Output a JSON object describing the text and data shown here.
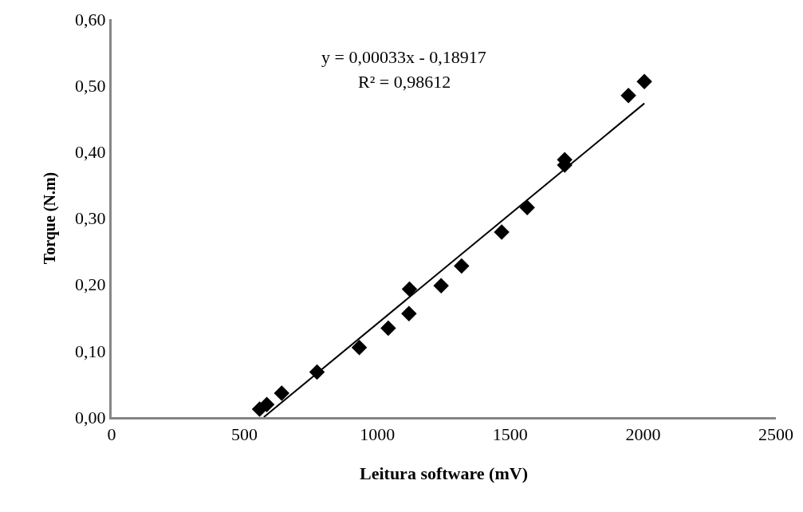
{
  "chart_data": {
    "type": "scatter",
    "xlabel": "Leitura software (mV)",
    "ylabel": "Torque (N.m)",
    "xlim": [
      0,
      2500
    ],
    "xticks": [
      0,
      500,
      1000,
      1500,
      2000,
      2500
    ],
    "ylim": [
      0,
      0.6
    ],
    "yticks": [
      {
        "value": 0,
        "label": "0,00"
      },
      {
        "value": 0.1,
        "label": "0,10"
      },
      {
        "value": 0.2,
        "label": "0,20"
      },
      {
        "value": 0.3,
        "label": "0,30"
      },
      {
        "value": 0.4,
        "label": "0,40"
      },
      {
        "value": 0.5,
        "label": "0,50"
      },
      {
        "value": 0.6,
        "label": "0,60"
      }
    ],
    "grid": false,
    "annotations": [
      "y = 0,00033x - 0,18917",
      "R² = 0,98612"
    ],
    "series": [
      {
        "marker": "diamond",
        "color": "#000000",
        "x": [
          557,
          584,
          640,
          773,
          932,
          1041,
          1119,
          1121,
          1240,
          1317,
          1468,
          1564,
          1705,
          1705,
          1945,
          2005
        ],
        "values": [
          0.012,
          0.019,
          0.036,
          0.068,
          0.105,
          0.134,
          0.156,
          0.193,
          0.198,
          0.228,
          0.279,
          0.316,
          0.388,
          0.38,
          0.485,
          0.506
        ]
      },
      {
        "type": "line",
        "marker": "none",
        "line_style": "solid",
        "color": "#000000",
        "x": [
          573,
          2005
        ],
        "values": [
          0.0,
          0.473
        ]
      }
    ]
  }
}
